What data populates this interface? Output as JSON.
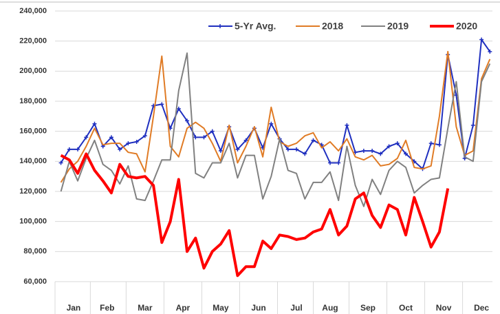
{
  "chart_data": {
    "type": "line",
    "x": [
      1,
      2,
      3,
      4,
      5,
      6,
      7,
      8,
      9,
      10,
      11,
      12,
      13,
      14,
      15,
      16,
      17,
      18,
      19,
      20,
      21,
      22,
      23,
      24,
      25,
      26,
      27,
      28,
      29,
      30,
      31,
      32,
      33,
      34,
      35,
      36,
      37,
      38,
      39,
      40,
      41,
      42,
      43,
      44,
      45,
      46,
      47,
      48,
      49,
      50,
      51,
      52
    ],
    "xlim": [
      0.3,
      52.3
    ],
    "xticks": [
      {
        "value": 2.5,
        "label": "Jan"
      },
      {
        "value": 6.5,
        "label": "Feb"
      },
      {
        "value": 11,
        "label": "Mar"
      },
      {
        "value": 15.5,
        "label": "Apr"
      },
      {
        "value": 20,
        "label": "May"
      },
      {
        "value": 24.5,
        "label": "Jun"
      },
      {
        "value": 29,
        "label": "Jul"
      },
      {
        "value": 33,
        "label": "Aug"
      },
      {
        "value": 37.5,
        "label": "Sep"
      },
      {
        "value": 42,
        "label": "Oct"
      },
      {
        "value": 46.5,
        "label": "Nov"
      },
      {
        "value": 51,
        "label": "Dec"
      }
    ],
    "ylim": [
      60000,
      240000
    ],
    "yticks": [
      {
        "value": 60000,
        "label": "60,000"
      },
      {
        "value": 80000,
        "label": "80,000"
      },
      {
        "value": 100000,
        "label": "100,000"
      },
      {
        "value": 120000,
        "label": "120,000"
      },
      {
        "value": 140000,
        "label": "140,000"
      },
      {
        "value": 160000,
        "label": "160,000"
      },
      {
        "value": 180000,
        "label": "180,000"
      },
      {
        "value": 200000,
        "label": "200,000"
      },
      {
        "value": 220000,
        "label": "220,000"
      },
      {
        "value": 240000,
        "label": "240,000"
      }
    ],
    "grid": true,
    "legend": "top",
    "series": [
      {
        "name": "5-Yr Avg.",
        "color": "#1f2fbf",
        "marker": true,
        "values": [
          139000,
          148000,
          148000,
          156000,
          165000,
          150000,
          156000,
          148000,
          152000,
          153000,
          157000,
          177000,
          178000,
          162000,
          175000,
          167000,
          156000,
          156000,
          160000,
          147000,
          163000,
          148000,
          154000,
          162000,
          149000,
          165000,
          155000,
          148000,
          148000,
          145000,
          154000,
          151000,
          139000,
          139000,
          164000,
          146000,
          147000,
          147000,
          145000,
          150000,
          152000,
          145000,
          140000,
          135000,
          152000,
          151000,
          211000,
          184000,
          142000,
          164000,
          221000,
          213000
        ]
      },
      {
        "name": "2018",
        "color": "#e07b25",
        "values": [
          126000,
          135000,
          140000,
          150000,
          162000,
          151000,
          152000,
          152000,
          146000,
          145000,
          133000,
          170000,
          210000,
          150000,
          143000,
          162000,
          166000,
          162000,
          152000,
          140000,
          164000,
          139000,
          150000,
          163000,
          143000,
          176000,
          153000,
          150000,
          152000,
          157000,
          159000,
          149000,
          153000,
          147000,
          155000,
          143000,
          141000,
          144000,
          137000,
          138000,
          142000,
          154000,
          136000,
          135000,
          137000,
          170000,
          213000,
          163000,
          144000,
          147000,
          195000,
          208000
        ]
      },
      {
        "name": "2019",
        "color": "#808080",
        "values": [
          120000,
          140000,
          127000,
          142000,
          154000,
          138000,
          134000,
          125000,
          137000,
          115000,
          114000,
          127000,
          141000,
          141000,
          187000,
          212000,
          132000,
          129000,
          139000,
          139000,
          152000,
          129000,
          144000,
          144000,
          115000,
          130000,
          155000,
          134000,
          132000,
          115000,
          126000,
          126000,
          133000,
          114000,
          150000,
          124000,
          110000,
          128000,
          118000,
          134000,
          140000,
          136000,
          119000,
          124000,
          128000,
          129000,
          162000,
          193000,
          143000,
          140000,
          193000,
          205000
        ]
      },
      {
        "name": "2020",
        "color": "#ff0000",
        "width": 4,
        "values": [
          144000,
          141000,
          132000,
          145000,
          134000,
          127000,
          119000,
          138000,
          130000,
          129000,
          130000,
          124000,
          86000,
          100000,
          128000,
          80000,
          89000,
          69000,
          80000,
          85000,
          94000,
          64000,
          70000,
          70000,
          87000,
          82000,
          91000,
          90000,
          88000,
          89000,
          93000,
          95000,
          108000,
          91000,
          97000,
          115000,
          119000,
          104000,
          96000,
          111000,
          108000,
          91000,
          116000,
          100000,
          83000,
          93000,
          122000,
          null,
          null,
          null,
          null,
          null
        ]
      }
    ]
  }
}
